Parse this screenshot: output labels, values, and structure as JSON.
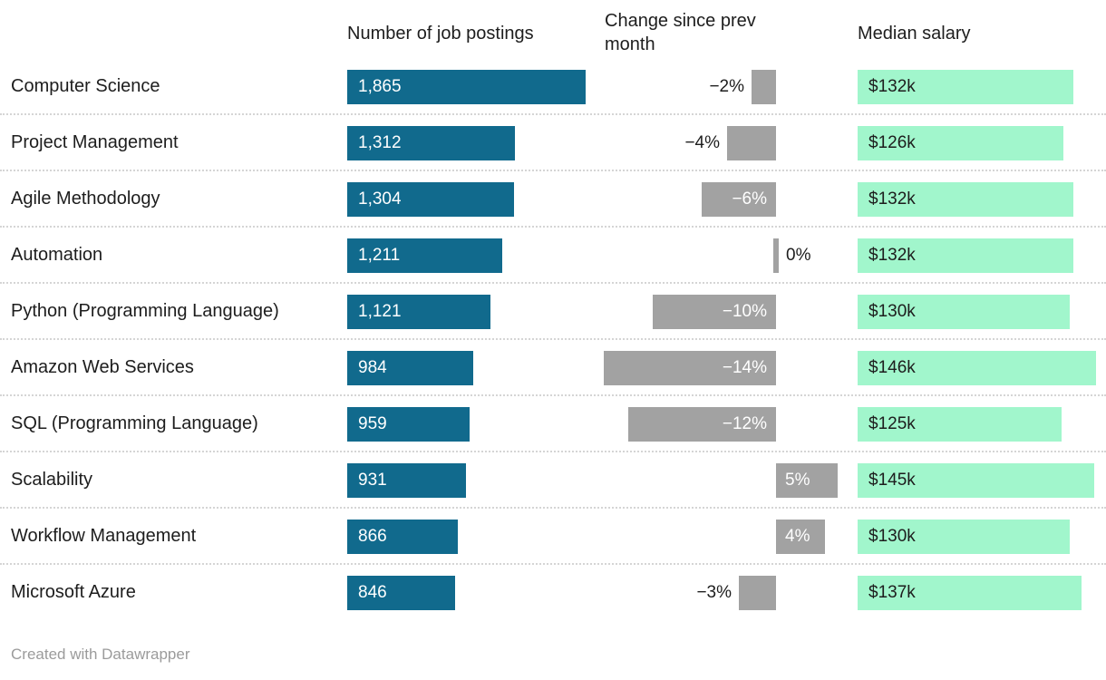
{
  "header": {
    "col_postings": "Number of job postings",
    "col_change": "Change since prev month",
    "col_salary": "Median salary"
  },
  "footer": {
    "credit": "Created with Datawrapper"
  },
  "colors": {
    "postings_bar": "#116a8d",
    "change_bar": "#a2a2a2",
    "salary_bar": "#a1f6cc",
    "text_dark": "#1d1d1d",
    "bar_text_light": "#ffffff",
    "separator": "#d5d5d5",
    "footer_text": "#9b9b9b"
  },
  "chart_data": {
    "type": "table",
    "title": "",
    "columns": [
      "Skill",
      "Number of job postings",
      "Change since prev month",
      "Median salary"
    ],
    "rows": [
      {
        "skill": "Computer Science",
        "postings": 1865,
        "postings_label": "1,865",
        "change_pct": -2,
        "change_label": "−2%",
        "median_salary_k": 132,
        "salary_label": "$132k"
      },
      {
        "skill": "Project Management",
        "postings": 1312,
        "postings_label": "1,312",
        "change_pct": -4,
        "change_label": "−4%",
        "median_salary_k": 126,
        "salary_label": "$126k"
      },
      {
        "skill": "Agile Methodology",
        "postings": 1304,
        "postings_label": "1,304",
        "change_pct": -6,
        "change_label": "−6%",
        "median_salary_k": 132,
        "salary_label": "$132k"
      },
      {
        "skill": "Automation",
        "postings": 1211,
        "postings_label": "1,211",
        "change_pct": 0,
        "change_label": "0%",
        "median_salary_k": 132,
        "salary_label": "$132k"
      },
      {
        "skill": "Python (Programming Language)",
        "postings": 1121,
        "postings_label": "1,121",
        "change_pct": -10,
        "change_label": "−10%",
        "median_salary_k": 130,
        "salary_label": "$130k"
      },
      {
        "skill": "Amazon Web Services",
        "postings": 984,
        "postings_label": "984",
        "change_pct": -14,
        "change_label": "−14%",
        "median_salary_k": 146,
        "salary_label": "$146k"
      },
      {
        "skill": "SQL (Programming Language)",
        "postings": 959,
        "postings_label": "959",
        "change_pct": -12,
        "change_label": "−12%",
        "median_salary_k": 125,
        "salary_label": "$125k"
      },
      {
        "skill": "Scalability",
        "postings": 931,
        "postings_label": "931",
        "change_pct": 5,
        "change_label": "5%",
        "median_salary_k": 145,
        "salary_label": "$145k"
      },
      {
        "skill": "Workflow Management",
        "postings": 866,
        "postings_label": "866",
        "change_pct": 4,
        "change_label": "4%",
        "median_salary_k": 130,
        "salary_label": "$130k"
      },
      {
        "skill": "Microsoft Azure",
        "postings": 846,
        "postings_label": "846",
        "change_pct": -3,
        "change_label": "−3%",
        "median_salary_k": 137,
        "salary_label": "$137k"
      }
    ],
    "layout_hints": {
      "postings_axis": [
        0,
        1865
      ],
      "change_axis_pct": [
        -14,
        5
      ],
      "salary_axis_k": [
        0,
        146
      ],
      "change_negative_direction": "left-of-zero-line",
      "grid": "dotted-row-separators",
      "legend": "none"
    }
  }
}
